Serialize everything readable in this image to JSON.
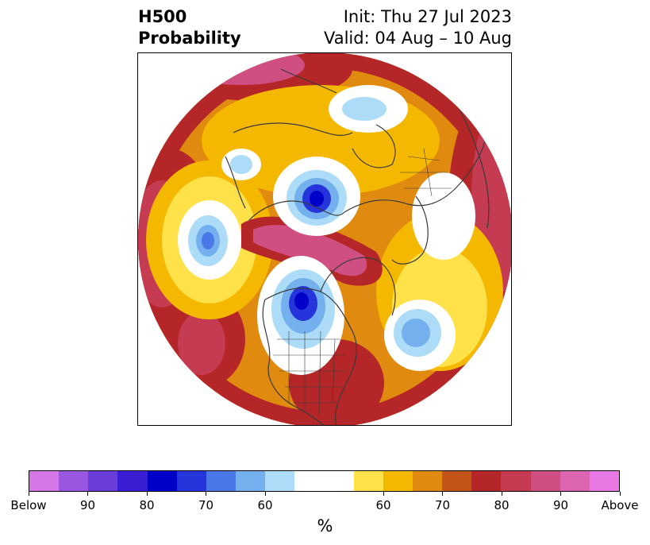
{
  "title": {
    "left_line1": "H500",
    "left_line2": "Probability",
    "right_line1": "Init: Thu 27 Jul 2023",
    "right_line2": "Valid: 04 Aug – 10 Aug"
  },
  "map": {
    "projection": "north-polar-stereographic",
    "colors": {
      "land_border": "#3a3a3a",
      "above_50": "#ffe14a",
      "above_60": "#f5b800",
      "above_70": "#e08a10",
      "above_75": "#c35418",
      "above_80": "#b42628",
      "above_85": "#c43b52",
      "above_90": "#cf4f82",
      "below_60": "#acdcf8",
      "below_70": "#74b0ee",
      "below_80": "#4a78e8",
      "below_90": "#2634dc",
      "below_max": "#0000c8"
    }
  },
  "colorbar": {
    "units": "%",
    "segments": [
      {
        "color": "#d677e8"
      },
      {
        "color": "#9a56e0"
      },
      {
        "color": "#6a3cd8"
      },
      {
        "color": "#3a1ed4"
      },
      {
        "color": "#0000c8"
      },
      {
        "color": "#2634dc"
      },
      {
        "color": "#4a78e8"
      },
      {
        "color": "#74b0ee"
      },
      {
        "color": "#acdcf8"
      },
      {
        "color": "#ffffff"
      },
      {
        "color": "#ffe14a"
      },
      {
        "color": "#f5b800"
      },
      {
        "color": "#e08a10"
      },
      {
        "color": "#c35418"
      },
      {
        "color": "#b42628"
      },
      {
        "color": "#c43b52"
      },
      {
        "color": "#cf4f82"
      },
      {
        "color": "#dc64b0"
      },
      {
        "color": "#e878e4"
      }
    ],
    "tick_labels": [
      "Below",
      "90",
      "80",
      "70",
      "60",
      "60",
      "70",
      "80",
      "90",
      "Above"
    ]
  }
}
